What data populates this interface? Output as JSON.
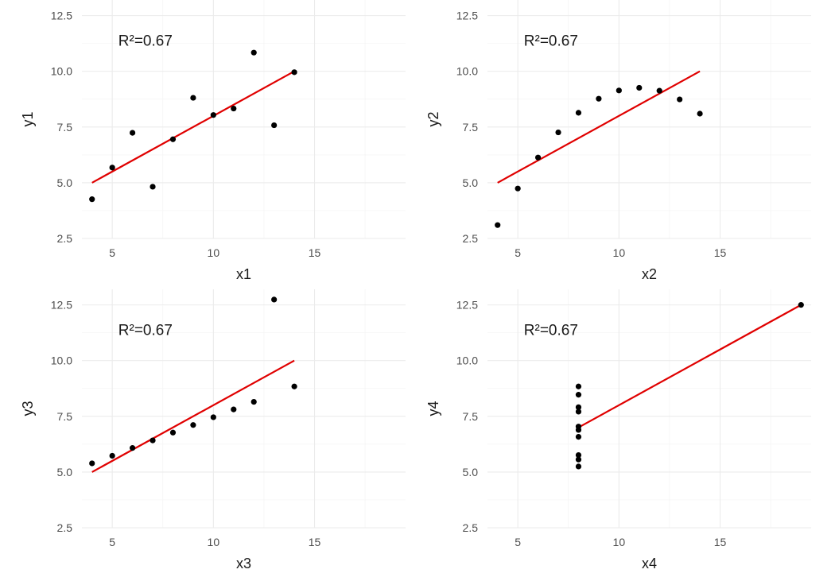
{
  "chart_data": [
    {
      "type": "scatter",
      "panel": "top-left",
      "xlabel": "x1",
      "ylabel": "y1",
      "annotation": "R²=0.67",
      "xlim": [
        3.5,
        19.5
      ],
      "ylim": [
        2.5,
        13.2
      ],
      "x_ticks": [
        5,
        10,
        15
      ],
      "y_ticks": [
        2.5,
        5.0,
        7.5,
        10.0,
        12.5
      ],
      "grid": true,
      "x": [
        4,
        5,
        6,
        7,
        8,
        9,
        10,
        11,
        12,
        13,
        14
      ],
      "y": [
        4.26,
        5.68,
        7.24,
        4.82,
        6.95,
        8.81,
        8.04,
        8.33,
        10.84,
        7.58,
        9.96
      ],
      "fit": {
        "x_start": 4,
        "x_end": 14,
        "intercept": 3.0,
        "slope": 0.5
      }
    },
    {
      "type": "scatter",
      "panel": "top-right",
      "xlabel": "x2",
      "ylabel": "y2",
      "annotation": "R²=0.67",
      "xlim": [
        3.5,
        19.5
      ],
      "ylim": [
        2.5,
        13.2
      ],
      "x_ticks": [
        5,
        10,
        15
      ],
      "y_ticks": [
        2.5,
        5.0,
        7.5,
        10.0,
        12.5
      ],
      "grid": true,
      "x": [
        4,
        5,
        6,
        7,
        8,
        9,
        10,
        11,
        12,
        13,
        14
      ],
      "y": [
        3.1,
        4.74,
        6.13,
        7.26,
        8.14,
        8.77,
        9.14,
        9.26,
        9.13,
        8.74,
        8.1
      ],
      "fit": {
        "x_start": 4,
        "x_end": 14,
        "intercept": 3.0,
        "slope": 0.5
      }
    },
    {
      "type": "scatter",
      "panel": "bottom-left",
      "xlabel": "x3",
      "ylabel": "y3",
      "annotation": "R²=0.67",
      "xlim": [
        3.5,
        19.5
      ],
      "ylim": [
        2.5,
        13.2
      ],
      "x_ticks": [
        5,
        10,
        15
      ],
      "y_ticks": [
        2.5,
        5.0,
        7.5,
        10.0,
        12.5
      ],
      "grid": true,
      "x": [
        4,
        5,
        6,
        7,
        8,
        9,
        10,
        11,
        12,
        13,
        14
      ],
      "y": [
        5.39,
        5.73,
        6.08,
        6.42,
        6.77,
        7.11,
        7.46,
        7.81,
        8.15,
        12.74,
        8.84
      ],
      "fit": {
        "x_start": 4,
        "x_end": 14,
        "intercept": 3.0,
        "slope": 0.5
      }
    },
    {
      "type": "scatter",
      "panel": "bottom-right",
      "xlabel": "x4",
      "ylabel": "y4",
      "annotation": "R²=0.67",
      "xlim": [
        3.5,
        19.5
      ],
      "ylim": [
        2.5,
        13.2
      ],
      "x_ticks": [
        5,
        10,
        15
      ],
      "y_ticks": [
        2.5,
        5.0,
        7.5,
        10.0,
        12.5
      ],
      "grid": true,
      "x": [
        8,
        8,
        8,
        8,
        8,
        8,
        8,
        19,
        8,
        8,
        8
      ],
      "y": [
        6.58,
        5.76,
        7.71,
        8.84,
        8.47,
        7.04,
        5.25,
        12.5,
        5.56,
        7.91,
        6.89
      ],
      "fit": {
        "x_start": 8,
        "x_end": 19,
        "intercept": 3.0,
        "slope": 0.5
      }
    }
  ],
  "colors": {
    "points": "#000000",
    "fit_line": "#e00000",
    "grid_major": "#ebebeb",
    "grid_minor": "#f4f4f4",
    "tick_text": "#4d4d4d",
    "title_text": "#1a1a1a"
  }
}
